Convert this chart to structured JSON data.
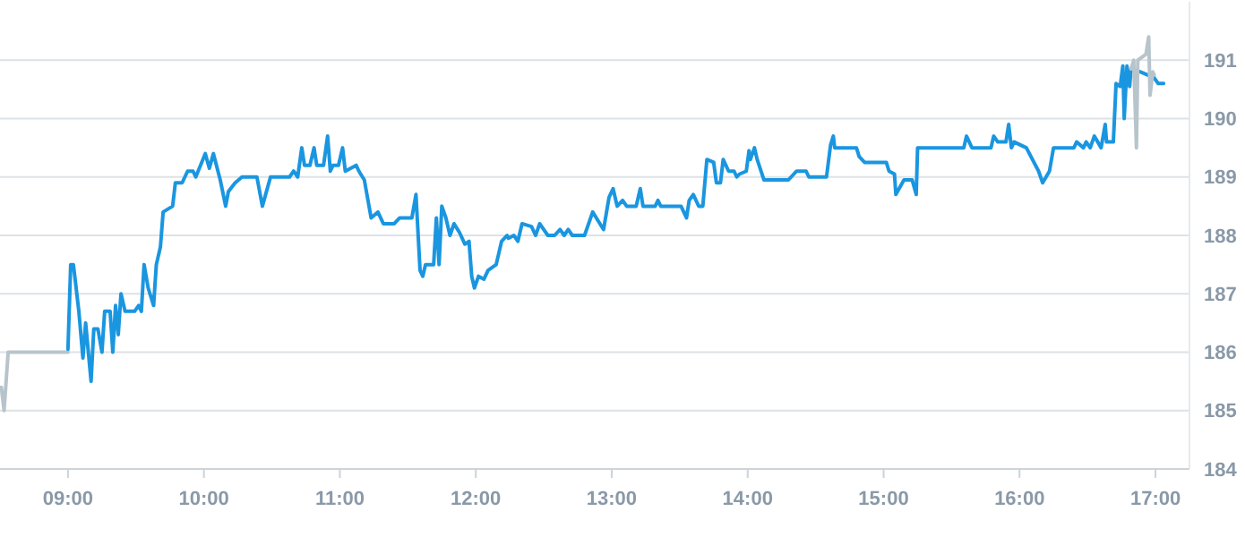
{
  "chart_data": {
    "type": "line",
    "xlim": [
      8.5,
      17.25
    ],
    "ylim": [
      184,
      192
    ],
    "xticks": [
      {
        "value": 9,
        "label": "09:00"
      },
      {
        "value": 10,
        "label": "10:00"
      },
      {
        "value": 11,
        "label": "11:00"
      },
      {
        "value": 12,
        "label": "12:00"
      },
      {
        "value": 13,
        "label": "13:00"
      },
      {
        "value": 14,
        "label": "14:00"
      },
      {
        "value": 15,
        "label": "15:00"
      },
      {
        "value": 16,
        "label": "16:00"
      },
      {
        "value": 17,
        "label": "17:00"
      }
    ],
    "yticks": [
      184,
      185,
      186,
      187,
      188,
      189,
      190,
      191
    ],
    "grid": "y",
    "line_style": "solid",
    "marker": "none",
    "series": [
      {
        "color": "#b8c4cc",
        "x": [
          8.51,
          8.53,
          8.56,
          9.0
        ],
        "values": [
          185.4,
          185.0,
          186.0,
          186.0
        ]
      },
      {
        "color": "#1a96e0",
        "x": [
          9.0,
          9.02,
          9.04,
          9.08,
          9.11,
          9.13,
          9.15,
          9.17,
          9.19,
          9.22,
          9.25,
          9.27,
          9.31,
          9.33,
          9.35,
          9.37,
          9.39,
          9.42,
          9.49,
          9.52,
          9.54,
          9.56,
          9.59,
          9.63,
          9.65,
          9.68,
          9.7,
          9.77,
          9.79,
          9.84,
          9.88,
          9.92,
          9.94,
          10.01,
          10.04,
          10.07,
          10.12,
          10.16,
          10.18,
          10.23,
          10.28,
          10.39,
          10.43,
          10.49,
          10.63,
          10.66,
          10.69,
          10.72,
          10.74,
          10.78,
          10.81,
          10.83,
          10.88,
          10.91,
          10.93,
          10.95,
          10.99,
          11.02,
          11.04,
          11.12,
          11.14,
          11.18,
          11.23,
          11.28,
          11.32,
          11.4,
          11.44,
          11.53,
          11.56,
          11.59,
          11.61,
          11.63,
          11.69,
          11.71,
          11.73,
          11.75,
          11.78,
          11.81,
          11.84,
          11.88,
          11.92,
          11.95,
          11.97,
          11.99,
          12.02,
          12.06,
          12.09,
          12.15,
          12.19,
          12.23,
          12.24,
          12.28,
          12.31,
          12.34,
          12.41,
          12.44,
          12.47,
          12.53,
          12.58,
          12.62,
          12.65,
          12.68,
          12.71,
          12.8,
          12.86,
          12.9,
          12.94,
          12.98,
          13.01,
          13.04,
          13.08,
          13.11,
          13.18,
          13.21,
          13.23,
          13.32,
          13.34,
          13.36,
          13.51,
          13.55,
          13.57,
          13.6,
          13.64,
          13.67,
          13.7,
          13.75,
          13.77,
          13.8,
          13.82,
          13.86,
          13.9,
          13.92,
          13.94,
          13.99,
          14.01,
          14.02,
          14.05,
          14.07,
          14.12,
          14.3,
          14.36,
          14.43,
          14.45,
          14.58,
          14.61,
          14.63,
          14.64,
          14.8,
          14.82,
          14.86,
          15.02,
          15.04,
          15.08,
          15.09,
          15.15,
          15.21,
          15.24,
          15.25,
          15.59,
          15.61,
          15.65,
          15.79,
          15.81,
          15.84,
          15.9,
          15.92,
          15.94,
          15.96,
          16.05,
          16.14,
          16.17,
          16.22,
          16.25,
          16.4,
          16.42,
          16.47,
          16.49,
          16.52,
          16.55,
          16.6,
          16.63,
          16.64,
          16.69,
          16.71,
          16.74,
          16.76,
          16.77,
          16.79,
          16.81,
          16.82,
          16.89,
          16.99,
          17.02,
          17.06
        ],
        "values": [
          186.05,
          187.5,
          187.5,
          186.7,
          185.9,
          186.5,
          186.0,
          185.5,
          186.4,
          186.4,
          186.0,
          186.7,
          186.7,
          186.0,
          186.8,
          186.3,
          187.0,
          186.7,
          186.7,
          186.8,
          186.7,
          187.5,
          187.1,
          186.8,
          187.5,
          187.8,
          188.4,
          188.5,
          188.9,
          188.9,
          189.1,
          189.1,
          189.0,
          189.4,
          189.15,
          189.4,
          188.95,
          188.5,
          188.75,
          188.9,
          189.0,
          189.0,
          188.5,
          189.0,
          189.0,
          189.1,
          189.0,
          189.5,
          189.2,
          189.2,
          189.5,
          189.2,
          189.2,
          189.7,
          189.1,
          189.2,
          189.2,
          189.5,
          189.1,
          189.2,
          189.1,
          188.95,
          188.3,
          188.4,
          188.2,
          188.2,
          188.3,
          188.3,
          188.7,
          187.4,
          187.3,
          187.5,
          187.5,
          188.3,
          187.5,
          188.5,
          188.3,
          188.0,
          188.2,
          188.05,
          187.85,
          187.9,
          187.3,
          187.1,
          187.3,
          187.25,
          187.4,
          187.5,
          187.9,
          188.0,
          187.95,
          188.0,
          187.9,
          188.2,
          188.15,
          188.0,
          188.2,
          188.0,
          188.0,
          188.1,
          188.0,
          188.1,
          188.0,
          188.0,
          188.4,
          188.25,
          188.1,
          188.65,
          188.8,
          188.5,
          188.6,
          188.5,
          188.5,
          188.8,
          188.5,
          188.5,
          188.6,
          188.5,
          188.5,
          188.3,
          188.6,
          188.7,
          188.5,
          188.5,
          189.3,
          189.25,
          188.9,
          188.9,
          189.3,
          189.1,
          189.1,
          189.0,
          189.05,
          189.1,
          189.45,
          189.3,
          189.5,
          189.3,
          188.95,
          188.95,
          189.1,
          189.1,
          189.0,
          189.0,
          189.55,
          189.7,
          189.5,
          189.5,
          189.35,
          189.25,
          189.25,
          189.1,
          189.05,
          188.7,
          188.95,
          188.95,
          188.7,
          189.5,
          189.5,
          189.7,
          189.5,
          189.5,
          189.7,
          189.6,
          189.6,
          189.9,
          189.5,
          189.6,
          189.5,
          189.1,
          188.9,
          189.1,
          189.5,
          189.5,
          189.6,
          189.5,
          189.6,
          189.5,
          189.7,
          189.5,
          189.9,
          189.6,
          189.6,
          190.6,
          190.55,
          190.9,
          190.0,
          190.9,
          190.55,
          190.85,
          190.8,
          190.7,
          190.6,
          190.6
        ]
      },
      {
        "color": "#b8c4cc",
        "x": [
          16.82,
          16.84,
          16.86,
          16.87,
          16.93,
          16.95,
          16.96,
          16.98,
          16.99
        ],
        "values": [
          190.85,
          191.0,
          189.5,
          191.0,
          191.1,
          191.4,
          190.4,
          190.8,
          190.75
        ]
      }
    ]
  }
}
